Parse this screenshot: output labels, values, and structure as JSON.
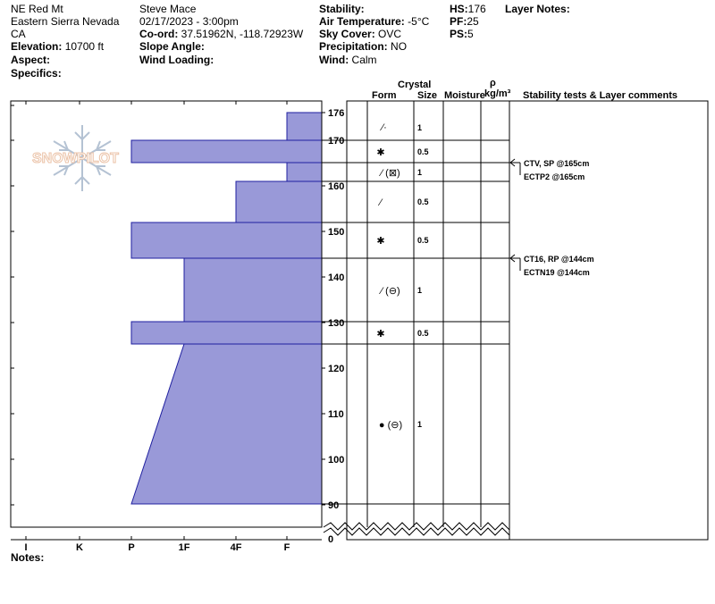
{
  "header": {
    "location": "NE Red Mt",
    "range": "Eastern Sierra Nevada",
    "state": "CA",
    "elevation_label": "Elevation:",
    "elevation_value": " 10700 ft",
    "aspect_label": "Aspect:",
    "specifics_label": "Specifics:",
    "observer": "Steve Mace",
    "datetime": "02/17/2023 - 3:00pm",
    "coord_label": "Co-ord:",
    "coord_value": " 37.51962N, -118.72923W",
    "slope_label": "Slope Angle:",
    "wind_loading_label": "Wind Loading:",
    "stability_label": "Stability:",
    "air_temp_label": "Air Temperature:",
    "air_temp_value": " -5°C",
    "sky_label": "Sky Cover:",
    "sky_value": " OVC",
    "precip_label": "Precipitation:",
    "precip_value": " NO",
    "wind_label": "Wind:",
    "wind_value": "  Calm",
    "hs_label": "HS:",
    "hs_value": "176",
    "pf_label": "PF:",
    "pf_value": "25",
    "ps_label": "PS:",
    "ps_value": "5",
    "layer_notes_label": "Layer Notes:"
  },
  "columns": {
    "crystal": "Crystal",
    "form": "Form",
    "size": "Size",
    "moisture": "Moisture",
    "rho": "ρ",
    "density_unit": "kg/m³",
    "stability_comments": "Stability tests & Layer comments"
  },
  "hardness_ticks": [
    "I",
    "K",
    "P",
    "1F",
    "4F",
    "F"
  ],
  "depth_ticks": [
    "176",
    "170",
    "160",
    "150",
    "140",
    "130",
    "120",
    "110",
    "100",
    "90",
    "0"
  ],
  "layers": [
    {
      "top": 176,
      "bottom": 170,
      "form": "⁄·",
      "size": "1",
      "hardness": "F"
    },
    {
      "top": 170,
      "bottom": 165,
      "form": "✱",
      "size": "0.5",
      "hardness": "P"
    },
    {
      "top": 165,
      "bottom": 161,
      "form": "⁄ (⊠)",
      "size": "1",
      "hardness": "F"
    },
    {
      "top": 161,
      "bottom": 152,
      "form": "⁄",
      "size": "0.5",
      "hardness": "4F"
    },
    {
      "top": 152,
      "bottom": 144,
      "form": "✱",
      "size": "0.5",
      "hardness": "P"
    },
    {
      "top": 144,
      "bottom": 130,
      "form": "⁄ (⊖)",
      "size": "1",
      "hardness": "1F"
    },
    {
      "top": 130,
      "bottom": 125,
      "form": "✱",
      "size": "0.5",
      "hardness": "P"
    },
    {
      "top": 125,
      "bottom": 90,
      "form": "● (⊖)",
      "size": "1",
      "hardness": "1F→P"
    }
  ],
  "stability_tests": [
    {
      "line1": "CTV, SP @165cm",
      "line2": "ECTP2 @165cm"
    },
    {
      "line1": "CT16, RP @144cm",
      "line2": "ECTN19 @144cm"
    }
  ],
  "watermark": "SNOWPILOT",
  "notes_label": "Notes:",
  "colors": {
    "layer_fill": "#9999d8",
    "layer_stroke": "#2020a0",
    "watermark": "#f0c8b0"
  }
}
